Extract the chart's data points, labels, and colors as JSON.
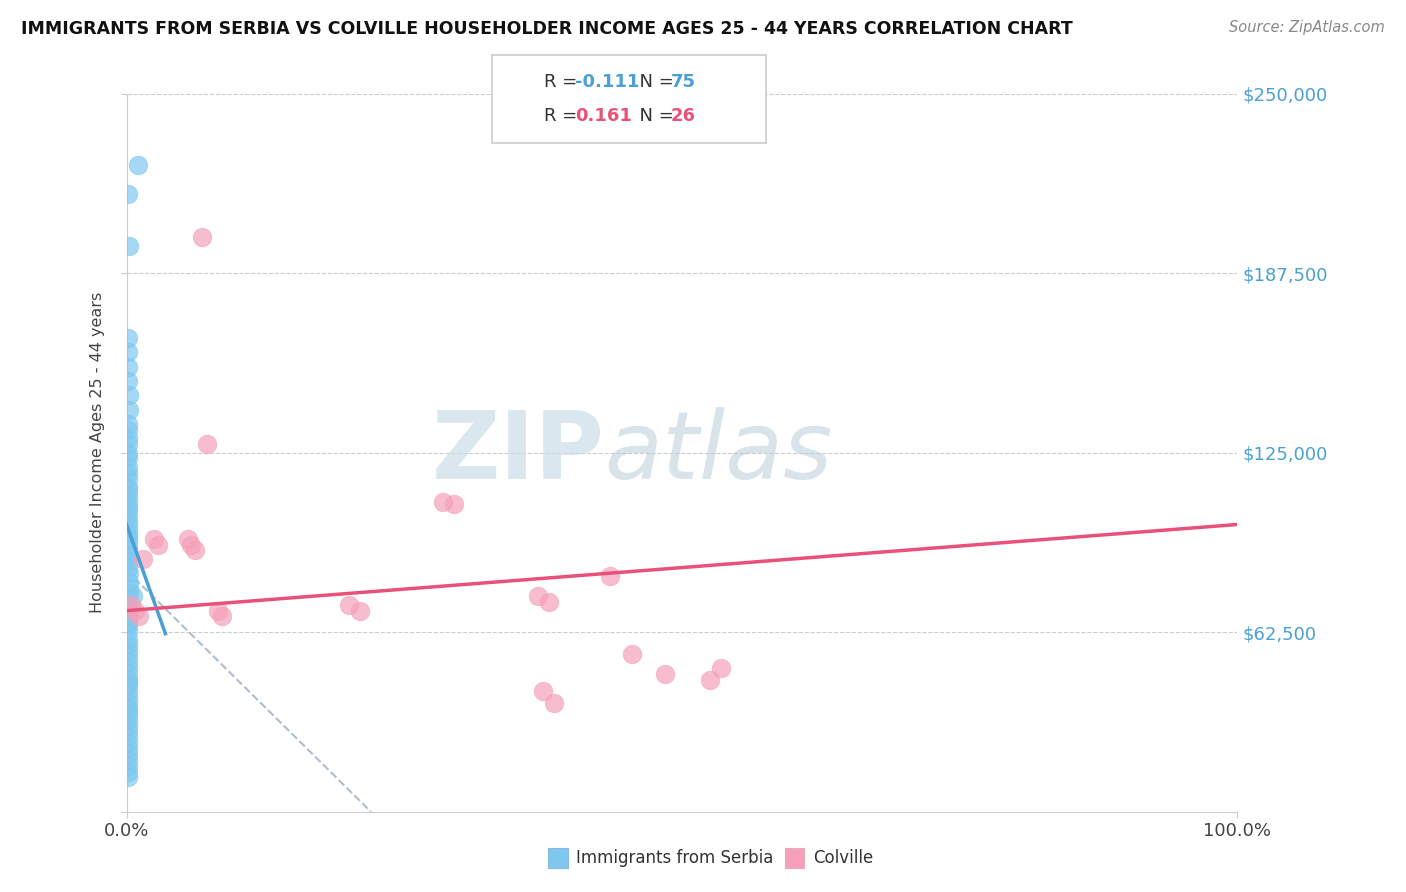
{
  "title": "IMMIGRANTS FROM SERBIA VS COLVILLE HOUSEHOLDER INCOME AGES 25 - 44 YEARS CORRELATION CHART",
  "source": "Source: ZipAtlas.com",
  "ylabel": "Householder Income Ages 25 - 44 years",
  "xlim": [
    0.0,
    100.0
  ],
  "ylim": [
    0,
    250000
  ],
  "yticks": [
    0,
    62500,
    125000,
    187500,
    250000
  ],
  "ytick_labels": [
    "",
    "$62,500",
    "$125,000",
    "$187,500",
    "$250,000"
  ],
  "legend1_R": "-0.111",
  "legend1_N": "75",
  "legend2_R": "0.161",
  "legend2_N": "26",
  "blue_color": "#7ec8f0",
  "pink_color": "#f5a0b8",
  "blue_line_color": "#4a9fd4",
  "pink_line_color": "#e8527a",
  "dashed_line_color": "#b0bcd0",
  "blue_scatter_x": [
    0.15,
    0.18,
    1.0,
    0.12,
    0.12,
    0.14,
    0.16,
    0.18,
    0.2,
    0.1,
    0.12,
    0.14,
    0.1,
    0.12,
    0.1,
    0.11,
    0.13,
    0.15,
    0.1,
    0.12,
    0.1,
    0.11,
    0.12,
    0.1,
    0.1,
    0.11,
    0.1,
    0.12,
    0.1,
    0.1,
    0.1,
    0.11,
    0.12,
    0.13,
    0.1,
    0.2,
    0.22,
    0.25,
    0.18,
    0.1,
    0.11,
    0.1,
    0.1,
    0.11,
    0.1,
    0.12,
    0.1,
    0.11,
    0.1,
    0.11,
    0.12,
    0.1,
    0.11,
    0.12,
    0.13,
    0.14,
    0.1,
    0.1,
    0.11,
    0.1,
    0.1,
    0.1,
    0.11,
    0.1,
    0.11,
    0.1,
    0.1,
    0.11,
    0.1,
    0.1,
    0.1,
    0.55,
    0.1,
    0.1,
    0.11
  ],
  "blue_scatter_y": [
    215000,
    197000,
    225000,
    165000,
    160000,
    155000,
    150000,
    145000,
    140000,
    135000,
    133000,
    130000,
    128000,
    125000,
    123000,
    120000,
    118000,
    116000,
    113000,
    112000,
    110000,
    108000,
    106000,
    105000,
    103000,
    101000,
    99000,
    97000,
    96000,
    95000,
    93000,
    91000,
    89000,
    87000,
    85000,
    83000,
    80000,
    78000,
    76000,
    74000,
    72000,
    70000,
    68000,
    66000,
    65000,
    63000,
    60000,
    58000,
    56000,
    54000,
    52000,
    50000,
    48000,
    46000,
    44000,
    42000,
    40000,
    38000,
    36000,
    34000,
    32000,
    30000,
    28000,
    26000,
    24000,
    22000,
    20000,
    18000,
    16000,
    14000,
    12000,
    75000,
    68000,
    45000,
    35000
  ],
  "pink_scatter_x": [
    1.5,
    2.5,
    2.8,
    5.5,
    5.8,
    6.2,
    28.5,
    29.5,
    37.0,
    38.0,
    43.5,
    48.5,
    52.5,
    53.5,
    0.4,
    0.8,
    1.1,
    8.2,
    8.6,
    20.0,
    21.0,
    6.8,
    7.2,
    37.5,
    38.5,
    45.5
  ],
  "pink_scatter_y": [
    88000,
    95000,
    93000,
    95000,
    93000,
    91000,
    108000,
    107000,
    75000,
    73000,
    82000,
    48000,
    46000,
    50000,
    72000,
    70000,
    68000,
    70000,
    68000,
    72000,
    70000,
    200000,
    128000,
    42000,
    38000,
    55000
  ],
  "blue_line_x": [
    0.0,
    3.5
  ],
  "blue_line_y": [
    100000,
    62000
  ],
  "pink_line_x": [
    0.0,
    100.0
  ],
  "pink_line_y": [
    70000,
    100000
  ],
  "dashed_line_x": [
    0.0,
    22.0
  ],
  "dashed_line_y": [
    84000,
    0
  ]
}
